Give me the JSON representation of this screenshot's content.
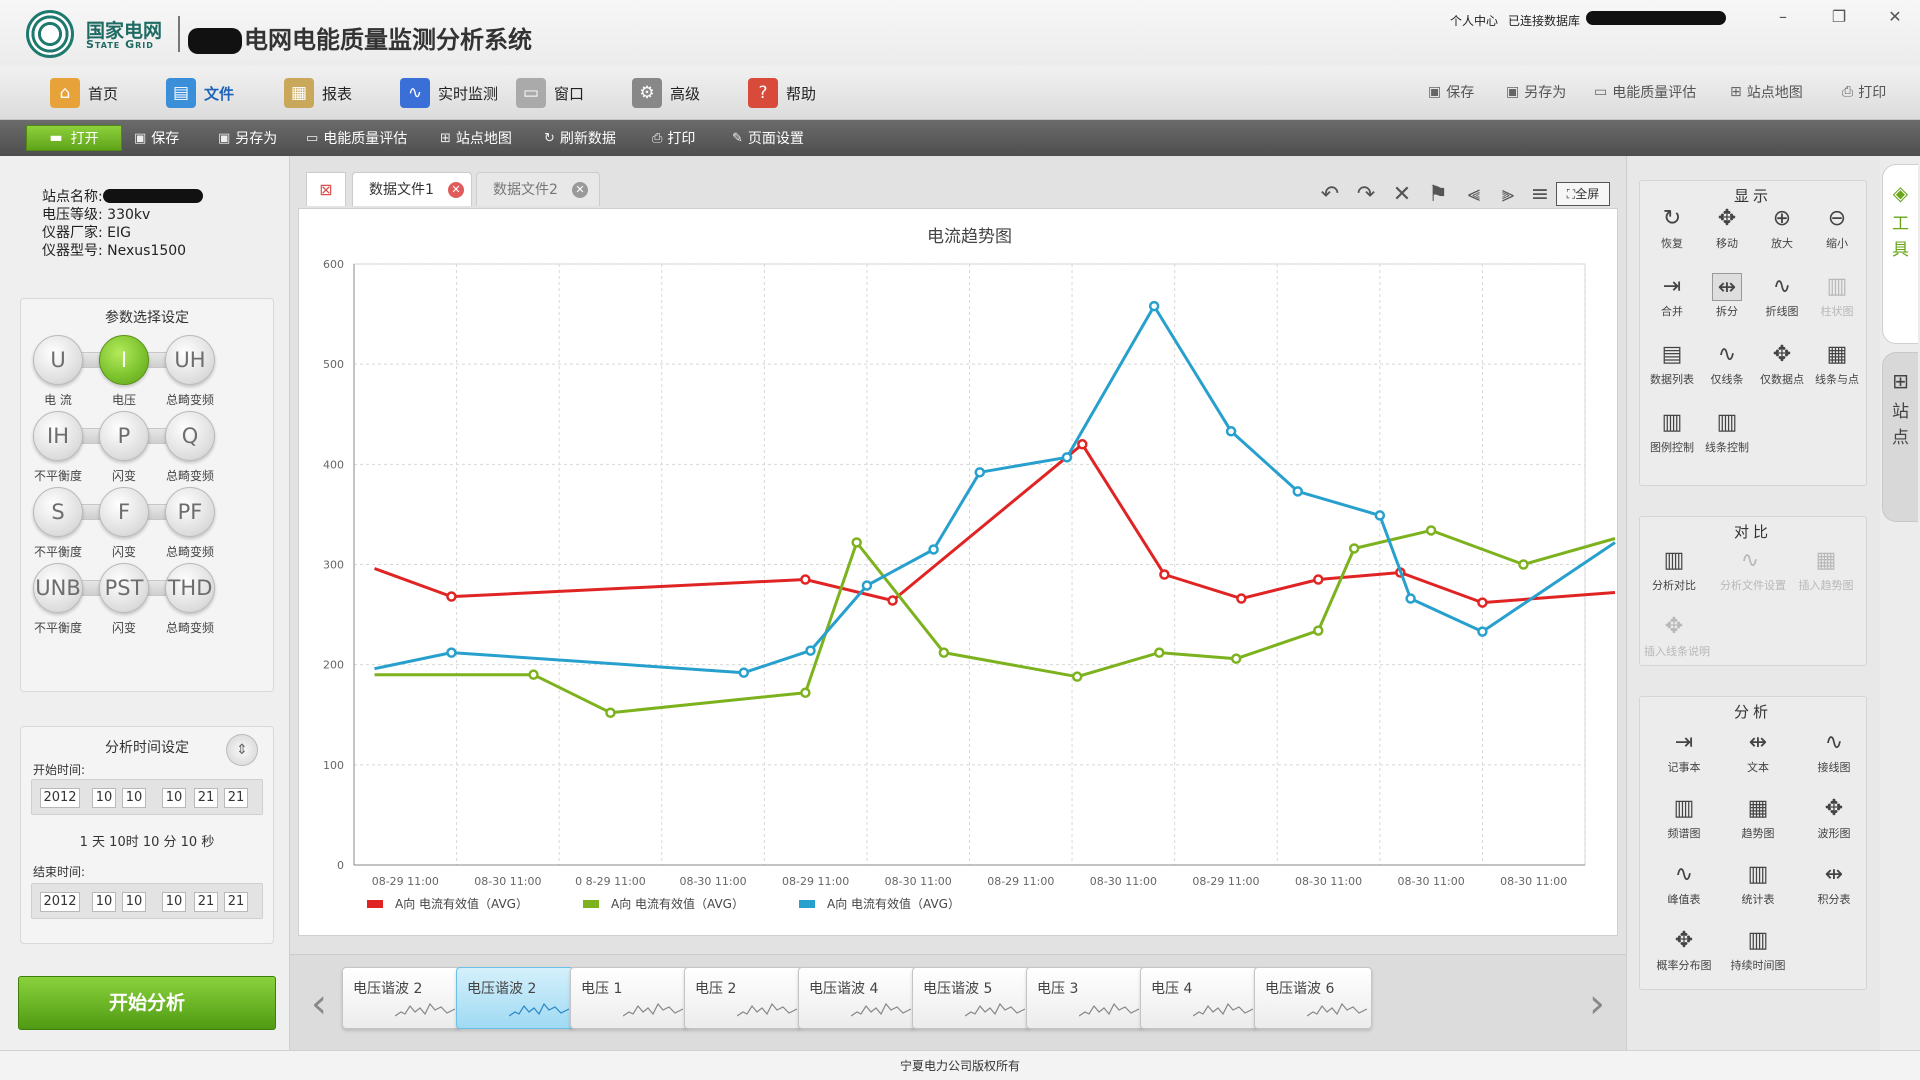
{
  "app": {
    "logo_cn": "国家电网",
    "logo_en": "State Grid",
    "title": "电网电能质量监测分析系统",
    "user_center": "个人中心",
    "db_status": "已连接数据库"
  },
  "main_menu": [
    {
      "label": "首页",
      "icon": "home-icon",
      "color": "#e8a23a"
    },
    {
      "label": "文件",
      "icon": "file-icon",
      "color": "#3a8fd8"
    },
    {
      "label": "报表",
      "icon": "report-icon",
      "color": "#c9a85c"
    },
    {
      "label": "实时监测",
      "icon": "monitor-icon",
      "color": "#3a6fd8"
    },
    {
      "label": "窗口",
      "icon": "window-icon",
      "color": "#aaaaaa"
    },
    {
      "label": "高级",
      "icon": "gear-icon",
      "color": "#888888"
    },
    {
      "label": "帮助",
      "icon": "help-icon",
      "color": "#d84a3a"
    }
  ],
  "main_menu_right": [
    "保存",
    "另存为",
    "电能质量评估",
    "站点地图",
    "打印"
  ],
  "toolbar": [
    "打开",
    "保存",
    "另存为",
    "电能质量评估",
    "站点地图",
    "刷新数据",
    "打印",
    "页面设置"
  ],
  "site_info": {
    "name_label": "站点名称:",
    "voltage": "电压等级: 330kv",
    "maker": "仪器厂家: EIG",
    "model": "仪器型号: Nexus1500"
  },
  "params": {
    "title": "参数选择设定",
    "buttons": [
      {
        "symbol": "U",
        "label": "电 流"
      },
      {
        "symbol": "I",
        "label": "电压"
      },
      {
        "symbol": "UH",
        "label": "总畸变频"
      },
      {
        "symbol": "IH",
        "label": "不平衡度"
      },
      {
        "symbol": "P",
        "label": "闪变"
      },
      {
        "symbol": "Q",
        "label": "总畸变频"
      },
      {
        "symbol": "S",
        "label": "不平衡度"
      },
      {
        "symbol": "F",
        "label": "闪变"
      },
      {
        "symbol": "PF",
        "label": "总畸变频"
      },
      {
        "symbol": "UNB",
        "label": "不平衡度"
      },
      {
        "symbol": "PST",
        "label": "闪变"
      },
      {
        "symbol": "THD",
        "label": "总畸变频"
      }
    ],
    "active": "I"
  },
  "time": {
    "title": "分析时间设定",
    "start_label": "开始时间:",
    "end_label": "结束时间:",
    "start": [
      "2012",
      "10",
      "10",
      "10",
      "21",
      "21"
    ],
    "end": [
      "2012",
      "10",
      "10",
      "10",
      "21",
      "21"
    ],
    "duration": "1 天 10时 10 分 10 秒"
  },
  "start_button": "开始分析",
  "tabs": [
    {
      "label": "数据文件1",
      "active": true
    },
    {
      "label": "数据文件2",
      "active": false
    }
  ],
  "chart_toolbar": {
    "fullscreen": "全屏"
  },
  "chart_data": {
    "type": "line",
    "title": "电流趋势图",
    "x": [
      "08-29 11:00",
      "08-30 11:00",
      "0 8-29 11:00",
      "08-30 11:00",
      "08-29 11:00",
      "08-30 11:00",
      "08-29 11:00",
      "08-30 11:00",
      "08-29 11:00",
      "08-30 11:00",
      "08-30 11:00",
      "08-30 11:00"
    ],
    "ylim": [
      0,
      600
    ],
    "yticks": [
      0,
      100,
      200,
      300,
      400,
      500,
      600
    ],
    "grid": true,
    "legend_position": "bottom-left",
    "series": [
      {
        "name": "A向 电流有效值（AVG）",
        "color": "#e02424",
        "points": [
          [
            -0.3,
            296
          ],
          [
            0.45,
            268
          ],
          [
            3.9,
            285
          ],
          [
            4.75,
            264
          ],
          [
            6.6,
            420
          ],
          [
            7.4,
            290
          ],
          [
            8.15,
            266
          ],
          [
            8.9,
            285
          ],
          [
            9.7,
            292
          ],
          [
            10.5,
            262
          ],
          [
            12.3,
            272
          ]
        ]
      },
      {
        "name": "A向 电流有效值（AVG）",
        "color": "#7db21f",
        "points": [
          [
            -0.3,
            190
          ],
          [
            1.25,
            190
          ],
          [
            2.0,
            152
          ],
          [
            3.9,
            172
          ],
          [
            4.4,
            322
          ],
          [
            5.25,
            212
          ],
          [
            6.55,
            188
          ],
          [
            7.35,
            212
          ],
          [
            8.1,
            206
          ],
          [
            8.9,
            234
          ],
          [
            9.25,
            316
          ],
          [
            10.0,
            334
          ],
          [
            10.9,
            300
          ],
          [
            12.3,
            326
          ]
        ]
      },
      {
        "name": "A向 电流有效值（AVG）",
        "color": "#27a0cd",
        "points": [
          [
            -0.3,
            196
          ],
          [
            0.45,
            212
          ],
          [
            3.3,
            192
          ],
          [
            3.95,
            214
          ],
          [
            4.5,
            279
          ],
          [
            5.15,
            315
          ],
          [
            5.6,
            392
          ],
          [
            6.45,
            407
          ],
          [
            7.3,
            558
          ],
          [
            8.05,
            433
          ],
          [
            8.7,
            373
          ],
          [
            9.5,
            349
          ],
          [
            9.8,
            266
          ],
          [
            10.5,
            233
          ],
          [
            12.3,
            322
          ]
        ]
      }
    ]
  },
  "thumbnails": [
    "电压谐波 2",
    "电压谐波 2",
    "电压 1",
    "电压 2",
    "电压谐波 4",
    "电压谐波 5",
    "电压 3",
    "电压 4",
    "电压谐波 6"
  ],
  "right_panel": {
    "display": {
      "title": "显示",
      "tools": [
        {
          "label": "恢复",
          "icon": "restore-icon",
          "glyph": "↻",
          "state": ""
        },
        {
          "label": "移动",
          "icon": "move-icon",
          "glyph": "✥",
          "state": ""
        },
        {
          "label": "放大",
          "icon": "zoom-in-icon",
          "glyph": "⊕",
          "state": ""
        },
        {
          "label": "缩小",
          "icon": "zoom-out-icon",
          "glyph": "⊖",
          "state": ""
        },
        {
          "label": "合并",
          "icon": "merge-icon",
          "glyph": "⇥",
          "state": ""
        },
        {
          "label": "拆分",
          "icon": "split-icon",
          "glyph": "⇹",
          "state": "selected"
        },
        {
          "label": "折线图",
          "icon": "line-chart-icon",
          "glyph": "∿",
          "state": ""
        },
        {
          "label": "柱状图",
          "icon": "bar-chart-icon",
          "glyph": "▥",
          "state": "disabled"
        },
        {
          "label": "数据列表",
          "icon": "data-list-icon",
          "glyph": "▤",
          "state": ""
        },
        {
          "label": "仅线条",
          "icon": "line-only-icon",
          "glyph": "∿",
          "state": ""
        },
        {
          "label": "仅数据点",
          "icon": "points-only-icon",
          "glyph": "✥",
          "state": ""
        },
        {
          "label": "线条与点",
          "icon": "line-point-icon",
          "glyph": "▦",
          "state": ""
        },
        {
          "label": "图例控制",
          "icon": "legend-control-icon",
          "glyph": "▥",
          "state": ""
        },
        {
          "label": "线条控制",
          "icon": "line-control-icon",
          "glyph": "▥",
          "state": ""
        }
      ]
    },
    "compare": {
      "title": "对比",
      "tools": [
        {
          "label": "分析对比",
          "icon": "compare-icon",
          "glyph": "▥",
          "state": ""
        },
        {
          "label": "分析文件设置",
          "icon": "file-setting-icon",
          "glyph": "∿",
          "state": "disabled"
        },
        {
          "label": "插入趋势图",
          "icon": "insert-trend-icon",
          "glyph": "▦",
          "state": "disabled"
        },
        {
          "label": "插入线条说明",
          "icon": "insert-note-icon",
          "glyph": "✥",
          "state": "disabled"
        }
      ]
    },
    "analysis": {
      "title": "分析",
      "tools": [
        {
          "label": "记事本",
          "icon": "notepad-icon",
          "glyph": "⇥",
          "state": ""
        },
        {
          "label": "文本",
          "icon": "text-icon",
          "glyph": "⇹",
          "state": ""
        },
        {
          "label": "接线图",
          "icon": "wiring-icon",
          "glyph": "∿",
          "state": ""
        },
        {
          "label": "频谱图",
          "icon": "spectrum-icon",
          "glyph": "▥",
          "state": ""
        },
        {
          "label": "趋势图",
          "icon": "trend-icon",
          "glyph": "▦",
          "state": ""
        },
        {
          "label": "波形图",
          "icon": "waveform-icon",
          "glyph": "✥",
          "state": ""
        },
        {
          "label": "峰值表",
          "icon": "peak-icon",
          "glyph": "∿",
          "state": ""
        },
        {
          "label": "统计表",
          "icon": "statistics-icon",
          "glyph": "▥",
          "state": ""
        },
        {
          "label": "积分表",
          "icon": "integral-icon",
          "glyph": "⇹",
          "state": ""
        },
        {
          "label": "概率分布图",
          "icon": "probability-icon",
          "glyph": "✥",
          "state": ""
        },
        {
          "label": "持续时间图",
          "icon": "duration-icon",
          "glyph": "▥",
          "state": ""
        }
      ]
    }
  },
  "side_tabs": [
    "工具",
    "站点"
  ],
  "footer": "宁夏电力公司版权所有"
}
